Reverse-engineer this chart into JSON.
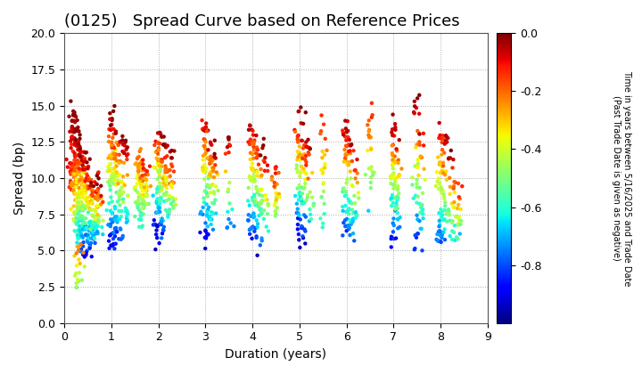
{
  "title": "(0125)   Spread Curve based on Reference Prices",
  "xlabel": "Duration (years)",
  "ylabel": "Spread (bp)",
  "colorbar_label": "Time in years between 5/16/2025 and Trade Date\n(Past Trade Date is given as negative)",
  "xlim": [
    0,
    9
  ],
  "ylim": [
    0.0,
    20.0
  ],
  "xticks": [
    0,
    1,
    2,
    3,
    4,
    5,
    6,
    7,
    8,
    9
  ],
  "yticks": [
    0.0,
    2.5,
    5.0,
    7.5,
    10.0,
    12.5,
    15.0,
    17.5,
    20.0
  ],
  "cmap": "jet",
  "vmin": -1.0,
  "vmax": 0.0,
  "colorbar_ticks": [
    0.0,
    -0.2,
    -0.4,
    -0.6,
    -0.8
  ],
  "background_color": "#ffffff",
  "grid_color": "#aaaaaa",
  "grid_style": "dotted",
  "title_fontsize": 13,
  "axis_label_fontsize": 10,
  "tick_fontsize": 9,
  "seed": 42,
  "dot_size": 10
}
